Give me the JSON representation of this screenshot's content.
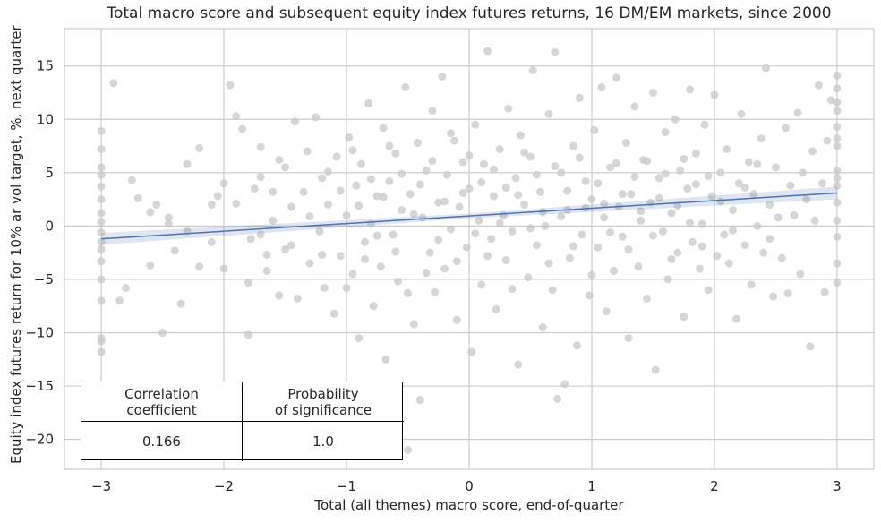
{
  "chart_data": {
    "type": "scatter",
    "title": "Total macro score and subsequent equity index futures returns, 16 DM/EM markets, since 2000",
    "xlabel": "Total (all themes) macro score, end-of-quarter",
    "ylabel": "Equity index futures return for 10% ar vol target, %, next quarter",
    "xlim": [
      -3.3,
      3.3
    ],
    "ylim": [
      -22.8,
      18.5
    ],
    "x_ticks": [
      -3,
      -2,
      -1,
      0,
      1,
      2,
      3
    ],
    "x_tick_labels": [
      "−3",
      "−2",
      "−1",
      "0",
      "1",
      "2",
      "3"
    ],
    "y_ticks": [
      -20,
      -15,
      -10,
      -5,
      0,
      5,
      10,
      15
    ],
    "y_tick_labels": [
      "−20",
      "−15",
      "−10",
      "−5",
      "0",
      "5",
      "10",
      "15"
    ],
    "grid": true,
    "regression_line": {
      "x": [
        -3,
        3
      ],
      "y": [
        -1.2,
        3.1
      ],
      "color": "#4c72b0",
      "band_color": "#4c72b0"
    },
    "point_color": "#c8c8c8",
    "points": [
      [
        -3.0,
        8.9
      ],
      [
        -3.0,
        7.2
      ],
      [
        -3.0,
        5.5
      ],
      [
        -3.0,
        4.8
      ],
      [
        -3.0,
        3.7
      ],
      [
        -3.0,
        2.5
      ],
      [
        -3.0,
        1.2
      ],
      [
        -3.0,
        0.4
      ],
      [
        -3.0,
        -0.6
      ],
      [
        -3.0,
        -1.5
      ],
      [
        -3.0,
        -2.2
      ],
      [
        -3.0,
        -3.3
      ],
      [
        -3.0,
        -5.0
      ],
      [
        -3.0,
        -7.0
      ],
      [
        -3.0,
        -10.5
      ],
      [
        -3.0,
        -10.8
      ],
      [
        -3.0,
        -11.8
      ],
      [
        -2.9,
        13.4
      ],
      [
        -2.85,
        -7.0
      ],
      [
        -2.8,
        -5.8
      ],
      [
        -2.75,
        4.3
      ],
      [
        -2.7,
        2.6
      ],
      [
        -2.6,
        1.3
      ],
      [
        -2.55,
        2.0
      ],
      [
        -2.5,
        -10.0
      ],
      [
        -2.45,
        0.8
      ],
      [
        -2.4,
        -2.3
      ],
      [
        -2.35,
        -7.3
      ],
      [
        -2.3,
        -0.5
      ],
      [
        -2.2,
        -3.8
      ],
      [
        -2.2,
        7.3
      ],
      [
        -2.1,
        2.0
      ],
      [
        -2.05,
        2.8
      ],
      [
        -2.0,
        4.0
      ],
      [
        -2.0,
        -4.0
      ],
      [
        -1.95,
        13.2
      ],
      [
        -1.9,
        10.3
      ],
      [
        -1.85,
        9.1
      ],
      [
        -1.8,
        -10.2
      ],
      [
        -1.78,
        -1.2
      ],
      [
        -1.75,
        3.5
      ],
      [
        -1.7,
        7.4
      ],
      [
        -1.7,
        -0.8
      ],
      [
        -1.65,
        -4.2
      ],
      [
        -1.6,
        0.5
      ],
      [
        -1.55,
        -6.5
      ],
      [
        -1.5,
        5.5
      ],
      [
        -1.5,
        -2.2
      ],
      [
        -1.45,
        1.8
      ],
      [
        -1.42,
        9.8
      ],
      [
        -1.4,
        -6.8
      ],
      [
        -1.35,
        3.2
      ],
      [
        -1.32,
        7.0
      ],
      [
        -1.3,
        -3.5
      ],
      [
        -1.25,
        10.2
      ],
      [
        -1.22,
        -0.5
      ],
      [
        -1.2,
        4.5
      ],
      [
        -1.18,
        -5.8
      ],
      [
        -1.15,
        2.0
      ],
      [
        -1.1,
        -8.2
      ],
      [
        -1.08,
        6.5
      ],
      [
        -1.05,
        -2.8
      ],
      [
        -1.0,
        1.0
      ],
      [
        -0.98,
        8.3
      ],
      [
        -0.95,
        -4.5
      ],
      [
        -0.92,
        3.8
      ],
      [
        -0.9,
        -10.5
      ],
      [
        -0.88,
        5.8
      ],
      [
        -0.85,
        -1.5
      ],
      [
        -0.82,
        11.5
      ],
      [
        -0.8,
        0.2
      ],
      [
        -0.78,
        -7.5
      ],
      [
        -0.75,
        2.8
      ],
      [
        -0.72,
        -3.8
      ],
      [
        -0.7,
        9.2
      ],
      [
        -0.68,
        -12.5
      ],
      [
        -0.65,
        4.2
      ],
      [
        -0.62,
        -0.8
      ],
      [
        -0.6,
        6.8
      ],
      [
        -0.58,
        -5.2
      ],
      [
        -0.55,
        1.5
      ],
      [
        -0.52,
        13.0
      ],
      [
        -0.5,
        -21.0
      ],
      [
        -0.48,
        3.0
      ],
      [
        -0.45,
        -9.2
      ],
      [
        -0.42,
        7.8
      ],
      [
        -0.4,
        -16.3
      ],
      [
        -0.38,
        0.8
      ],
      [
        -0.35,
        5.2
      ],
      [
        -0.32,
        -2.5
      ],
      [
        -0.3,
        10.8
      ],
      [
        -0.28,
        -6.2
      ],
      [
        -0.25,
        2.2
      ],
      [
        -0.22,
        14.0
      ],
      [
        -0.2,
        -4.0
      ],
      [
        -0.18,
        4.8
      ],
      [
        -0.15,
        -0.3
      ],
      [
        -0.12,
        8.0
      ],
      [
        -0.1,
        -8.8
      ],
      [
        -0.08,
        1.8
      ],
      [
        -0.05,
        6.0
      ],
      [
        -0.02,
        -2.0
      ],
      [
        0.0,
        3.5
      ],
      [
        0.02,
        -11.8
      ],
      [
        0.05,
        9.5
      ],
      [
        0.08,
        0.5
      ],
      [
        0.1,
        -5.5
      ],
      [
        0.12,
        5.8
      ],
      [
        0.15,
        16.4
      ],
      [
        0.18,
        -1.2
      ],
      [
        0.2,
        2.8
      ],
      [
        0.22,
        -7.8
      ],
      [
        0.25,
        7.2
      ],
      [
        0.28,
        1.0
      ],
      [
        0.3,
        -3.2
      ],
      [
        0.32,
        11.0
      ],
      [
        0.35,
        -0.5
      ],
      [
        0.38,
        4.5
      ],
      [
        0.4,
        -13.0
      ],
      [
        0.42,
        8.5
      ],
      [
        0.45,
        2.0
      ],
      [
        0.48,
        -4.8
      ],
      [
        0.5,
        6.5
      ],
      [
        0.52,
        14.6
      ],
      [
        0.55,
        -1.8
      ],
      [
        0.58,
        3.2
      ],
      [
        0.6,
        -9.5
      ],
      [
        0.62,
        0.0
      ],
      [
        0.65,
        10.5
      ],
      [
        0.68,
        -6.0
      ],
      [
        0.7,
        16.3
      ],
      [
        0.72,
        -16.2
      ],
      [
        0.75,
        5.0
      ],
      [
        0.78,
        -14.8
      ],
      [
        0.8,
        1.5
      ],
      [
        0.82,
        -3.0
      ],
      [
        0.85,
        7.5
      ],
      [
        0.88,
        -11.2
      ],
      [
        0.9,
        12.0
      ],
      [
        0.92,
        -0.8
      ],
      [
        0.95,
        4.2
      ],
      [
        0.98,
        -6.5
      ],
      [
        1.0,
        2.5
      ],
      [
        1.02,
        9.0
      ],
      [
        1.05,
        -2.0
      ],
      [
        1.08,
        13.0
      ],
      [
        1.1,
        0.8
      ],
      [
        1.12,
        -8.0
      ],
      [
        1.15,
        5.5
      ],
      [
        1.18,
        -4.2
      ],
      [
        1.2,
        13.9
      ],
      [
        1.22,
        1.8
      ],
      [
        1.25,
        -1.0
      ],
      [
        1.28,
        7.8
      ],
      [
        1.3,
        -10.5
      ],
      [
        1.32,
        3.0
      ],
      [
        1.35,
        11.2
      ],
      [
        1.38,
        -3.8
      ],
      [
        1.4,
        0.5
      ],
      [
        1.42,
        6.2
      ],
      [
        1.45,
        -6.8
      ],
      [
        1.48,
        2.2
      ],
      [
        1.5,
        12.5
      ],
      [
        1.52,
        -13.5
      ],
      [
        1.55,
        4.5
      ],
      [
        1.58,
        -0.5
      ],
      [
        1.6,
        8.8
      ],
      [
        1.62,
        -5.0
      ],
      [
        1.65,
        1.2
      ],
      [
        1.68,
        10.0
      ],
      [
        1.7,
        -2.5
      ],
      [
        1.72,
        5.2
      ],
      [
        1.75,
        -8.5
      ],
      [
        1.78,
        3.5
      ],
      [
        1.8,
        12.8
      ],
      [
        1.82,
        -1.5
      ],
      [
        1.85,
        6.8
      ],
      [
        1.88,
        -4.0
      ],
      [
        1.9,
        0.2
      ],
      [
        1.92,
        9.5
      ],
      [
        1.95,
        -6.0
      ],
      [
        1.98,
        2.8
      ],
      [
        2.0,
        12.3
      ],
      [
        2.02,
        -2.8
      ],
      [
        2.05,
        5.0
      ],
      [
        2.08,
        -0.8
      ],
      [
        2.1,
        7.2
      ],
      [
        2.12,
        -3.5
      ],
      [
        2.15,
        1.5
      ],
      [
        2.18,
        -8.7
      ],
      [
        2.2,
        4.0
      ],
      [
        2.22,
        10.5
      ],
      [
        2.25,
        -1.8
      ],
      [
        2.28,
        6.0
      ],
      [
        2.3,
        -5.5
      ],
      [
        2.32,
        3.0
      ],
      [
        2.35,
        0.0
      ],
      [
        2.38,
        8.2
      ],
      [
        2.4,
        -2.5
      ],
      [
        2.42,
        14.8
      ],
      [
        2.45,
        2.0
      ],
      [
        2.48,
        -6.6
      ],
      [
        2.5,
        5.5
      ],
      [
        2.52,
        0.8
      ],
      [
        2.55,
        -3.0
      ],
      [
        2.58,
        9.2
      ],
      [
        2.6,
        -6.3
      ],
      [
        2.62,
        3.8
      ],
      [
        2.65,
        1.0
      ],
      [
        2.68,
        10.6
      ],
      [
        2.7,
        -4.5
      ],
      [
        2.72,
        5.0
      ],
      [
        2.75,
        2.5
      ],
      [
        2.78,
        -11.3
      ],
      [
        2.8,
        7.0
      ],
      [
        2.82,
        0.5
      ],
      [
        2.85,
        13.2
      ],
      [
        2.88,
        4.0
      ],
      [
        2.9,
        -6.2
      ],
      [
        2.92,
        8.0
      ],
      [
        2.95,
        11.8
      ],
      [
        3.0,
        14.1
      ],
      [
        3.0,
        12.9
      ],
      [
        3.0,
        11.6
      ],
      [
        3.0,
        10.8
      ],
      [
        3.0,
        9.3
      ],
      [
        3.0,
        8.2
      ],
      [
        3.0,
        7.5
      ],
      [
        3.0,
        5.2
      ],
      [
        3.0,
        4.5
      ],
      [
        3.0,
        3.8
      ],
      [
        3.0,
        2.2
      ],
      [
        3.0,
        0.5
      ],
      [
        3.0,
        -1.0
      ],
      [
        3.0,
        -3.5
      ],
      [
        3.0,
        -5.3
      ],
      [
        -1.6,
        3.2
      ],
      [
        -1.55,
        6.2
      ],
      [
        -1.45,
        -1.8
      ],
      [
        -1.3,
        0.9
      ],
      [
        -1.2,
        -2.7
      ],
      [
        -1.15,
        5.1
      ],
      [
        -1.05,
        3.3
      ],
      [
        -1.0,
        -5.8
      ],
      [
        -0.95,
        7.1
      ],
      [
        -0.9,
        1.9
      ],
      [
        -0.85,
        -3.1
      ],
      [
        -0.8,
        4.4
      ],
      [
        -0.75,
        -0.9
      ],
      [
        -0.7,
        2.7
      ],
      [
        -0.65,
        7.5
      ],
      [
        -0.6,
        -2.4
      ],
      [
        -0.55,
        4.9
      ],
      [
        -0.5,
        -6.3
      ],
      [
        -0.45,
        1.1
      ],
      [
        -0.4,
        3.9
      ],
      [
        -0.35,
        -4.4
      ],
      [
        -0.3,
        6.1
      ],
      [
        -0.25,
        -1.3
      ],
      [
        -0.2,
        2.3
      ],
      [
        -0.15,
        8.7
      ],
      [
        -0.1,
        -3.3
      ],
      [
        -0.05,
        3.1
      ],
      [
        0.0,
        6.6
      ],
      [
        0.05,
        -0.7
      ],
      [
        0.1,
        4.1
      ],
      [
        0.15,
        -2.8
      ],
      [
        0.2,
        5.3
      ],
      [
        0.25,
        0.3
      ],
      [
        0.3,
        3.6
      ],
      [
        0.35,
        -5.9
      ],
      [
        0.4,
        2.9
      ],
      [
        0.45,
        6.9
      ],
      [
        0.5,
        -0.2
      ],
      [
        0.55,
        4.8
      ],
      [
        0.6,
        1.3
      ],
      [
        0.65,
        -3.5
      ],
      [
        0.7,
        5.6
      ],
      [
        0.75,
        0.9
      ],
      [
        0.8,
        3.3
      ],
      [
        0.85,
        -1.9
      ],
      [
        0.9,
        6.4
      ],
      [
        0.95,
        1.7
      ],
      [
        1.0,
        -4.6
      ],
      [
        1.05,
        4.0
      ],
      [
        1.1,
        2.1
      ],
      [
        1.15,
        -0.6
      ],
      [
        1.2,
        5.9
      ],
      [
        1.25,
        3.0
      ],
      [
        1.3,
        -2.2
      ],
      [
        1.35,
        4.6
      ],
      [
        1.4,
        1.4
      ],
      [
        1.45,
        6.1
      ],
      [
        1.5,
        -0.9
      ],
      [
        1.55,
        2.6
      ],
      [
        1.6,
        4.9
      ],
      [
        1.65,
        -3.1
      ],
      [
        1.7,
        1.9
      ],
      [
        1.75,
        6.3
      ],
      [
        1.8,
        0.3
      ],
      [
        1.85,
        3.9
      ],
      [
        1.9,
        -1.9
      ],
      [
        1.95,
        4.7
      ],
      [
        2.05,
        2.3
      ],
      [
        2.15,
        -0.4
      ],
      [
        2.25,
        3.6
      ],
      [
        2.35,
        5.8
      ],
      [
        2.45,
        -1.2
      ],
      [
        -2.3,
        5.8
      ],
      [
        -2.1,
        -1.5
      ],
      [
        -1.9,
        2.1
      ],
      [
        -1.8,
        -5.3
      ],
      [
        -2.6,
        -3.7
      ],
      [
        -2.45,
        0.2
      ],
      [
        -1.7,
        4.6
      ],
      [
        -1.65,
        -2.7
      ]
    ]
  },
  "table": {
    "header": [
      "Correlation\ncoefficient",
      "Probability\nof significance"
    ],
    "values": [
      "0.166",
      "1.0"
    ]
  }
}
